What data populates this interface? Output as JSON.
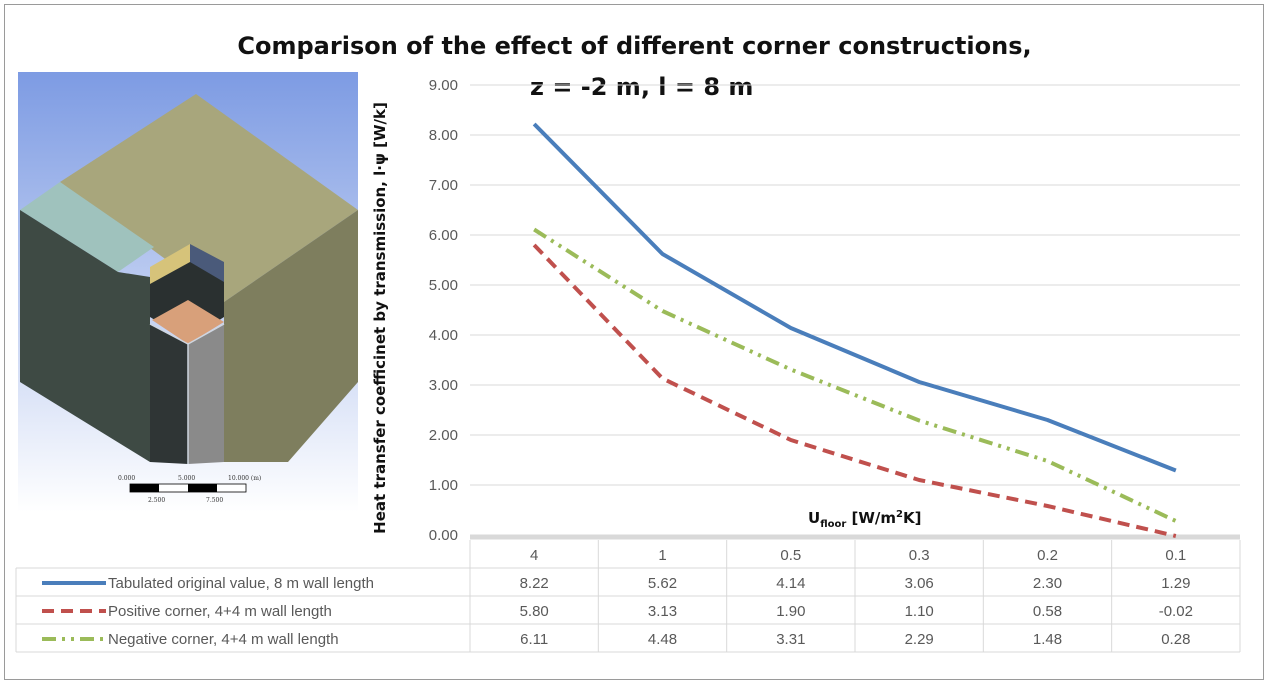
{
  "chart_data": {
    "type": "line",
    "title": "Comparison of the effect of different corner constructions,",
    "subtitle": "z = -2 m, l = 8 m",
    "ylabel": "Heat transfer coefficinet by transmission, l·ψ [W/k]",
    "xlabel_main": "U",
    "xlabel_sub": "floor",
    "xlabel_unit_pre": " [W/m",
    "xlabel_unit_sup": "2",
    "xlabel_unit_post": "K]",
    "categories": [
      "4",
      "1",
      "0.5",
      "0.3",
      "0.2",
      "0.1"
    ],
    "ylim": [
      0,
      9
    ],
    "yticks": [
      "0.00",
      "1.00",
      "2.00",
      "3.00",
      "4.00",
      "5.00",
      "6.00",
      "7.00",
      "8.00",
      "9.00"
    ],
    "grid": true,
    "legend": "data-table",
    "series": [
      {
        "name": "Tabulated original value, 8 m wall length",
        "values": [
          8.22,
          5.62,
          4.14,
          3.06,
          2.3,
          1.29
        ],
        "labels": [
          "8.22",
          "5.62",
          "4.14",
          "3.06",
          "2.30",
          "1.29"
        ],
        "color": "#4a7ebb",
        "style": "solid"
      },
      {
        "name": "Positive corner, 4+4 m wall length",
        "values": [
          5.8,
          3.13,
          1.9,
          1.1,
          0.58,
          -0.02
        ],
        "labels": [
          "5.80",
          "3.13",
          "1.90",
          "1.10",
          "0.58",
          "-0.02"
        ],
        "color": "#c0504d",
        "style": "dashed"
      },
      {
        "name": "Negative corner, 4+4 m wall length",
        "values": [
          6.11,
          4.48,
          3.31,
          2.29,
          1.48,
          0.28
        ],
        "labels": [
          "6.11",
          "4.48",
          "3.31",
          "2.29",
          "1.48",
          "0.28"
        ],
        "color": "#9bbb59",
        "style": "dashdotdot"
      }
    ]
  },
  "figure": {
    "scale_labels_top": [
      "0.000",
      "5.000",
      "10.000 (m)"
    ],
    "scale_labels_bottom": [
      "2.500",
      "7.500"
    ]
  }
}
